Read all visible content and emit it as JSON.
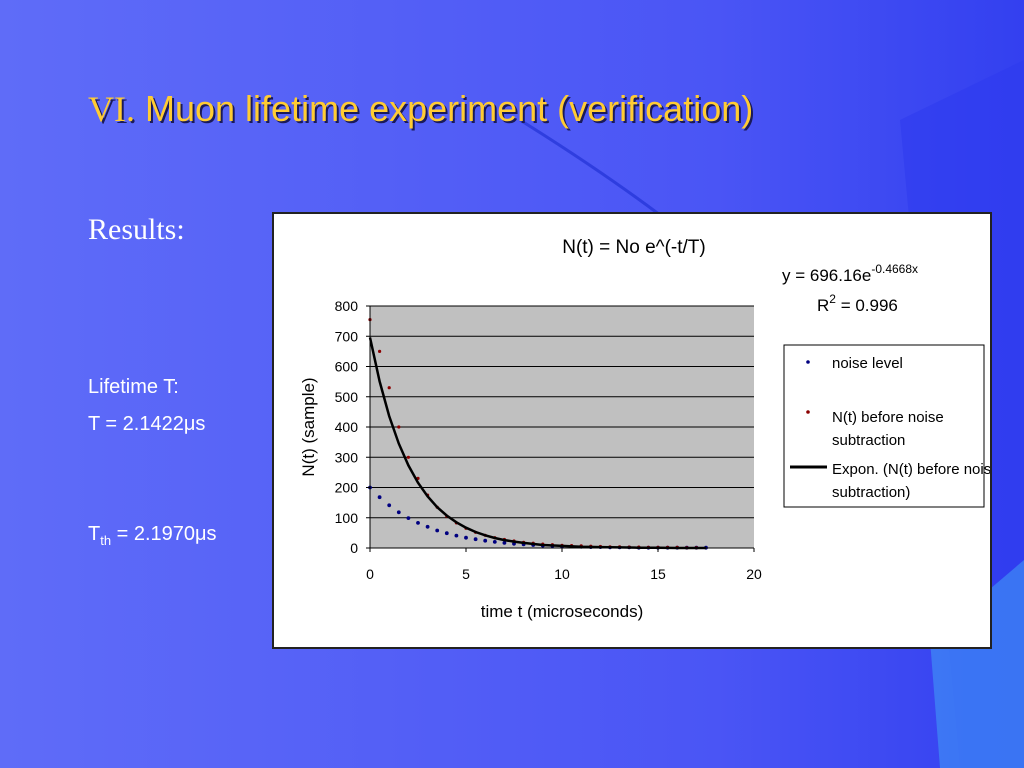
{
  "slide": {
    "title_numeral": "VI.",
    "title_text": " Muon lifetime experiment (verification)",
    "results_label": "Results:",
    "lifetime_label": "Lifetime T:",
    "lifetime_value": "T = 2.1422μs",
    "theoretical_prefix": "T",
    "theoretical_subscript": "th",
    "theoretical_value": " = 2.1970μs"
  },
  "colors": {
    "background": "#4F5BF7",
    "title": "#FFCC33",
    "plot_area": "#C0C0C0",
    "noise_series": "#000080",
    "raw_series": "#8B0000",
    "fit_line": "#000000"
  },
  "chart_data": {
    "type": "scatter",
    "title": "N(t) = No e^(-t/T)",
    "xlabel": "time t (microseconds)",
    "ylabel": "N(t) (sample)",
    "xlim": [
      0,
      20
    ],
    "ylim": [
      0,
      800
    ],
    "x_ticks": [
      "0",
      "5",
      "10",
      "15",
      "20"
    ],
    "y_ticks": [
      "0",
      "100",
      "200",
      "300",
      "400",
      "500",
      "600",
      "700",
      "800"
    ],
    "grid": true,
    "legend_position": "right",
    "trendline_equation": {
      "prefix": "y = 696.16e",
      "exponent": "-0.4668x"
    },
    "r_squared": {
      "prefix": "R",
      "power": "2",
      "value": " = 0.996"
    },
    "series": [
      {
        "name": "noise level",
        "kind": "points",
        "x": [
          0,
          0.5,
          1,
          1.5,
          2,
          2.5,
          3,
          3.5,
          4,
          4.5,
          5,
          5.5,
          6,
          6.5,
          7,
          7.5,
          8,
          8.5,
          9,
          9.5,
          10,
          10.5,
          11,
          11.5,
          12,
          12.5,
          13,
          13.5,
          14,
          14.5,
          15,
          15.5,
          16,
          16.5,
          17,
          17.5
        ],
        "y": [
          200,
          168,
          141,
          118,
          99,
          83,
          70,
          58,
          49,
          41,
          34,
          29,
          24,
          20,
          17,
          14,
          12,
          10,
          8,
          7,
          6,
          5,
          4,
          3,
          3,
          2,
          2,
          2,
          1,
          1,
          1,
          1,
          1,
          1,
          1,
          1
        ]
      },
      {
        "name": "N(t) before noise subtraction",
        "kind": "points",
        "x": [
          0,
          0.5,
          1,
          1.5,
          2,
          2.5,
          3,
          3.5,
          4,
          4.5,
          5,
          5.5,
          6,
          6.5,
          7,
          7.5,
          8,
          8.5,
          9,
          9.5,
          10,
          10.5,
          11,
          11.5,
          12,
          12.5,
          13,
          13.5,
          14,
          14.5,
          15,
          15.5,
          16,
          16.5,
          17
        ],
        "y": [
          755,
          650,
          530,
          400,
          300,
          230,
          175,
          135,
          105,
          83,
          65,
          52,
          42,
          34,
          28,
          23,
          19,
          16,
          13,
          11,
          9,
          8,
          7,
          6,
          5,
          4,
          4,
          3,
          3,
          2,
          2,
          2,
          2,
          1,
          1
        ]
      },
      {
        "name": "Expon. (N(t) before noise subtraction)",
        "kind": "line",
        "x": [
          0,
          0.5,
          1,
          1.5,
          2,
          2.5,
          3,
          3.5,
          4,
          4.5,
          5,
          5.5,
          6,
          6.5,
          7,
          7.5,
          8,
          9,
          10,
          11,
          12,
          13,
          14,
          15,
          16,
          17,
          17.5
        ],
        "y": [
          696,
          551,
          436,
          345,
          273,
          216,
          171,
          135,
          107,
          85,
          67,
          53,
          42,
          33,
          26,
          21,
          17,
          10,
          7,
          4,
          3,
          2,
          1,
          1,
          0,
          0,
          0
        ]
      }
    ]
  }
}
